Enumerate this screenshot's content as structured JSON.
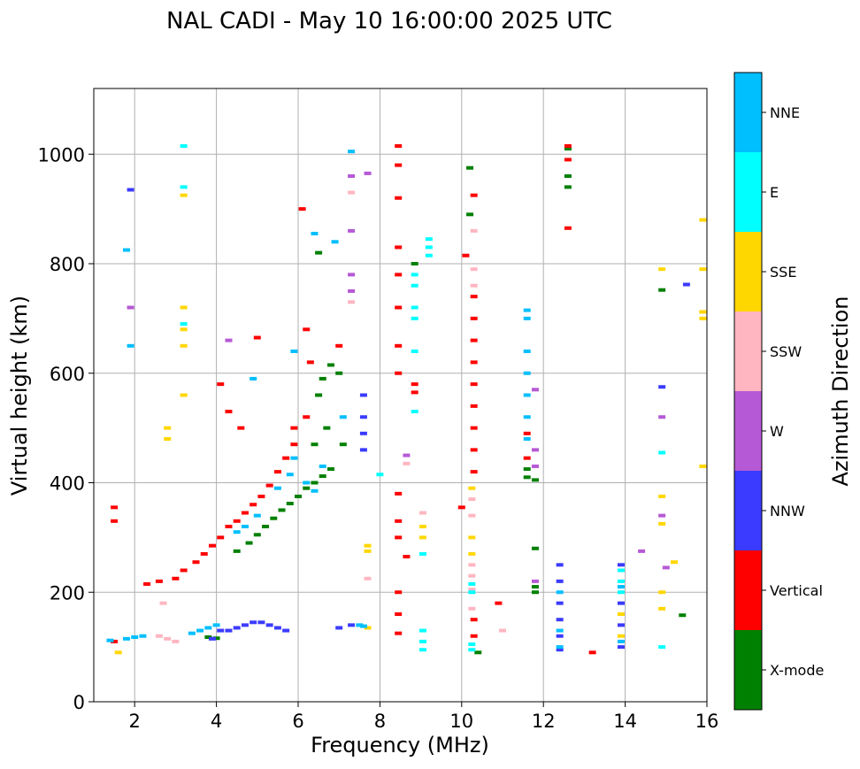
{
  "chart_data": {
    "type": "scatter",
    "title": "NAL CADI - May 10 16:00:00 2025 UTC",
    "xlabel": "Frequency (MHz)",
    "ylabel": "Virtual height (km)",
    "xlim": [
      1,
      16
    ],
    "ylim": [
      0,
      1120
    ],
    "xticks": [
      2,
      4,
      6,
      8,
      10,
      12,
      14,
      16
    ],
    "yticks": [
      0,
      200,
      400,
      600,
      800,
      1000
    ],
    "grid": true,
    "colorbar": {
      "label": "Azimuth Direction",
      "categories": [
        {
          "name": "X-mode",
          "color": "#008000"
        },
        {
          "name": "Vertical",
          "color": "#ff0000"
        },
        {
          "name": "NNW",
          "color": "#3b3bff"
        },
        {
          "name": "W",
          "color": "#b659d6"
        },
        {
          "name": "SSW",
          "color": "#ffb6c1"
        },
        {
          "name": "SSE",
          "color": "#ffd700"
        },
        {
          "name": "E",
          "color": "#00ffff"
        },
        {
          "name": "NNE",
          "color": "#00bfff"
        }
      ]
    },
    "series": [
      {
        "name": "X-mode",
        "points": [
          [
            3.8,
            118
          ],
          [
            4.0,
            116
          ],
          [
            4.5,
            275
          ],
          [
            4.8,
            290
          ],
          [
            5.0,
            305
          ],
          [
            5.2,
            320
          ],
          [
            5.4,
            335
          ],
          [
            5.6,
            350
          ],
          [
            5.8,
            362
          ],
          [
            6.0,
            375
          ],
          [
            6.2,
            390
          ],
          [
            6.4,
            400
          ],
          [
            6.6,
            412
          ],
          [
            6.8,
            425
          ],
          [
            6.5,
            560
          ],
          [
            6.6,
            590
          ],
          [
            6.8,
            615
          ],
          [
            7.0,
            600
          ],
          [
            7.1,
            470
          ],
          [
            6.5,
            820
          ],
          [
            6.4,
            470
          ],
          [
            6.7,
            500
          ],
          [
            8.85,
            800
          ],
          [
            10.2,
            975
          ],
          [
            10.2,
            890
          ],
          [
            10.4,
            90
          ],
          [
            11.6,
            410
          ],
          [
            11.6,
            425
          ],
          [
            11.8,
            405
          ],
          [
            11.8,
            280
          ],
          [
            11.8,
            210
          ],
          [
            11.8,
            200
          ],
          [
            12.6,
            1010
          ],
          [
            12.6,
            960
          ],
          [
            12.6,
            940
          ],
          [
            14.9,
            752
          ],
          [
            15.4,
            158
          ]
        ]
      },
      {
        "name": "Vertical",
        "points": [
          [
            1.5,
            355
          ],
          [
            1.5,
            330
          ],
          [
            1.5,
            110
          ],
          [
            2.3,
            215
          ],
          [
            2.6,
            220
          ],
          [
            3.0,
            225
          ],
          [
            3.2,
            240
          ],
          [
            3.5,
            255
          ],
          [
            3.7,
            270
          ],
          [
            3.9,
            285
          ],
          [
            4.1,
            300
          ],
          [
            4.3,
            320
          ],
          [
            4.5,
            330
          ],
          [
            4.7,
            345
          ],
          [
            4.9,
            360
          ],
          [
            5.1,
            375
          ],
          [
            5.3,
            395
          ],
          [
            5.5,
            420
          ],
          [
            5.7,
            445
          ],
          [
            5.9,
            470
          ],
          [
            5.9,
            500
          ],
          [
            6.2,
            520
          ],
          [
            4.1,
            580
          ],
          [
            4.3,
            530
          ],
          [
            4.6,
            500
          ],
          [
            5.0,
            665
          ],
          [
            6.1,
            900
          ],
          [
            6.2,
            680
          ],
          [
            6.3,
            620
          ],
          [
            7.0,
            650
          ],
          [
            8.45,
            1015
          ],
          [
            8.45,
            980
          ],
          [
            8.45,
            920
          ],
          [
            8.45,
            830
          ],
          [
            8.45,
            780
          ],
          [
            8.45,
            720
          ],
          [
            8.45,
            650
          ],
          [
            8.45,
            600
          ],
          [
            8.45,
            380
          ],
          [
            8.45,
            330
          ],
          [
            8.45,
            300
          ],
          [
            8.45,
            200
          ],
          [
            8.45,
            160
          ],
          [
            8.45,
            125
          ],
          [
            8.65,
            265
          ],
          [
            8.85,
            580
          ],
          [
            8.85,
            565
          ],
          [
            10.0,
            355
          ],
          [
            10.1,
            815
          ],
          [
            10.3,
            925
          ],
          [
            10.3,
            740
          ],
          [
            10.3,
            700
          ],
          [
            10.3,
            660
          ],
          [
            10.3,
            620
          ],
          [
            10.3,
            580
          ],
          [
            10.3,
            540
          ],
          [
            10.3,
            500
          ],
          [
            10.3,
            460
          ],
          [
            10.3,
            420
          ],
          [
            10.3,
            150
          ],
          [
            10.3,
            120
          ],
          [
            10.9,
            180
          ],
          [
            11.6,
            490
          ],
          [
            11.6,
            445
          ],
          [
            12.6,
            1015
          ],
          [
            12.6,
            990
          ],
          [
            12.6,
            865
          ],
          [
            13.2,
            90
          ]
        ]
      },
      {
        "name": "NNW",
        "points": [
          [
            1.9,
            935
          ],
          [
            4.1,
            130
          ],
          [
            4.3,
            130
          ],
          [
            4.5,
            135
          ],
          [
            4.7,
            140
          ],
          [
            4.9,
            145
          ],
          [
            5.1,
            145
          ],
          [
            5.3,
            140
          ],
          [
            5.5,
            135
          ],
          [
            5.7,
            130
          ],
          [
            3.9,
            115
          ],
          [
            7.6,
            520
          ],
          [
            7.6,
            490
          ],
          [
            7.6,
            460
          ],
          [
            7.6,
            560
          ],
          [
            12.4,
            250
          ],
          [
            12.4,
            220
          ],
          [
            12.4,
            180
          ],
          [
            12.4,
            150
          ],
          [
            12.4,
            120
          ],
          [
            12.4,
            95
          ],
          [
            13.9,
            250
          ],
          [
            13.9,
            180
          ],
          [
            13.9,
            140
          ],
          [
            13.9,
            100
          ],
          [
            14.9,
            575
          ],
          [
            15.5,
            762
          ],
          [
            7.3,
            140
          ],
          [
            7.0,
            135
          ]
        ]
      },
      {
        "name": "W",
        "points": [
          [
            1.9,
            720
          ],
          [
            7.3,
            960
          ],
          [
            7.3,
            860
          ],
          [
            7.3,
            780
          ],
          [
            7.3,
            750
          ],
          [
            8.65,
            450
          ],
          [
            11.8,
            570
          ],
          [
            11.8,
            460
          ],
          [
            11.8,
            430
          ],
          [
            11.8,
            220
          ],
          [
            14.4,
            275
          ],
          [
            14.9,
            520
          ],
          [
            14.9,
            340
          ],
          [
            15.0,
            245
          ],
          [
            4.3,
            660
          ],
          [
            7.7,
            965
          ]
        ]
      },
      {
        "name": "SSW",
        "points": [
          [
            2.6,
            120
          ],
          [
            2.8,
            115
          ],
          [
            3.0,
            110
          ],
          [
            2.7,
            180
          ],
          [
            8.65,
            435
          ],
          [
            9.05,
            345
          ],
          [
            10.25,
            370
          ],
          [
            10.25,
            340
          ],
          [
            10.25,
            250
          ],
          [
            10.25,
            230
          ],
          [
            10.25,
            205
          ],
          [
            10.25,
            170
          ],
          [
            10.3,
            860
          ],
          [
            10.3,
            790
          ],
          [
            10.3,
            760
          ],
          [
            7.3,
            930
          ],
          [
            7.3,
            730
          ],
          [
            11.0,
            130
          ],
          [
            7.7,
            225
          ]
        ]
      },
      {
        "name": "SSE",
        "points": [
          [
            1.6,
            90
          ],
          [
            2.8,
            500
          ],
          [
            2.8,
            480
          ],
          [
            3.2,
            720
          ],
          [
            3.2,
            680
          ],
          [
            3.2,
            650
          ],
          [
            3.2,
            560
          ],
          [
            3.2,
            925
          ],
          [
            7.7,
            285
          ],
          [
            7.7,
            275
          ],
          [
            9.05,
            320
          ],
          [
            9.05,
            300
          ],
          [
            10.25,
            300
          ],
          [
            10.25,
            270
          ],
          [
            10.25,
            390
          ],
          [
            14.9,
            790
          ],
          [
            14.9,
            375
          ],
          [
            14.9,
            325
          ],
          [
            14.9,
            200
          ],
          [
            14.9,
            170
          ],
          [
            15.2,
            255
          ],
          [
            15.9,
            880
          ],
          [
            15.9,
            790
          ],
          [
            15.9,
            712
          ],
          [
            15.9,
            700
          ],
          [
            15.9,
            430
          ],
          [
            13.9,
            160
          ],
          [
            13.9,
            120
          ],
          [
            7.7,
            135
          ]
        ]
      },
      {
        "name": "E",
        "points": [
          [
            3.2,
            1015
          ],
          [
            3.2,
            940
          ],
          [
            3.2,
            690
          ],
          [
            8.85,
            780
          ],
          [
            8.85,
            760
          ],
          [
            8.85,
            720
          ],
          [
            8.85,
            700
          ],
          [
            8.85,
            640
          ],
          [
            8.85,
            530
          ],
          [
            9.05,
            130
          ],
          [
            9.05,
            110
          ],
          [
            9.05,
            95
          ],
          [
            9.05,
            270
          ],
          [
            10.25,
            105
          ],
          [
            10.25,
            95
          ],
          [
            10.25,
            215
          ],
          [
            10.25,
            200
          ],
          [
            13.9,
            220
          ],
          [
            13.9,
            200
          ],
          [
            13.9,
            240
          ],
          [
            14.9,
            455
          ],
          [
            14.9,
            100
          ],
          [
            9.2,
            815
          ],
          [
            9.2,
            830
          ],
          [
            9.2,
            845
          ],
          [
            8.0,
            415
          ]
        ]
      },
      {
        "name": "NNE",
        "points": [
          [
            1.4,
            112
          ],
          [
            1.8,
            115
          ],
          [
            2.0,
            118
          ],
          [
            2.2,
            120
          ],
          [
            3.4,
            125
          ],
          [
            3.6,
            130
          ],
          [
            3.8,
            135
          ],
          [
            4.0,
            140
          ],
          [
            4.5,
            310
          ],
          [
            4.7,
            320
          ],
          [
            5.0,
            340
          ],
          [
            5.5,
            390
          ],
          [
            5.8,
            415
          ],
          [
            5.9,
            445
          ],
          [
            6.2,
            400
          ],
          [
            6.4,
            385
          ],
          [
            6.6,
            430
          ],
          [
            7.1,
            520
          ],
          [
            7.3,
            1005
          ],
          [
            7.5,
            140
          ],
          [
            7.6,
            138
          ],
          [
            11.6,
            715
          ],
          [
            11.6,
            700
          ],
          [
            11.6,
            640
          ],
          [
            11.6,
            600
          ],
          [
            11.6,
            560
          ],
          [
            11.6,
            520
          ],
          [
            11.6,
            480
          ],
          [
            12.4,
            200
          ],
          [
            12.4,
            130
          ],
          [
            12.4,
            100
          ],
          [
            13.9,
            210
          ],
          [
            13.9,
            110
          ],
          [
            6.9,
            840
          ],
          [
            6.4,
            855
          ],
          [
            1.9,
            650
          ],
          [
            1.8,
            825
          ],
          [
            5.9,
            640
          ],
          [
            4.9,
            590
          ]
        ]
      }
    ]
  }
}
